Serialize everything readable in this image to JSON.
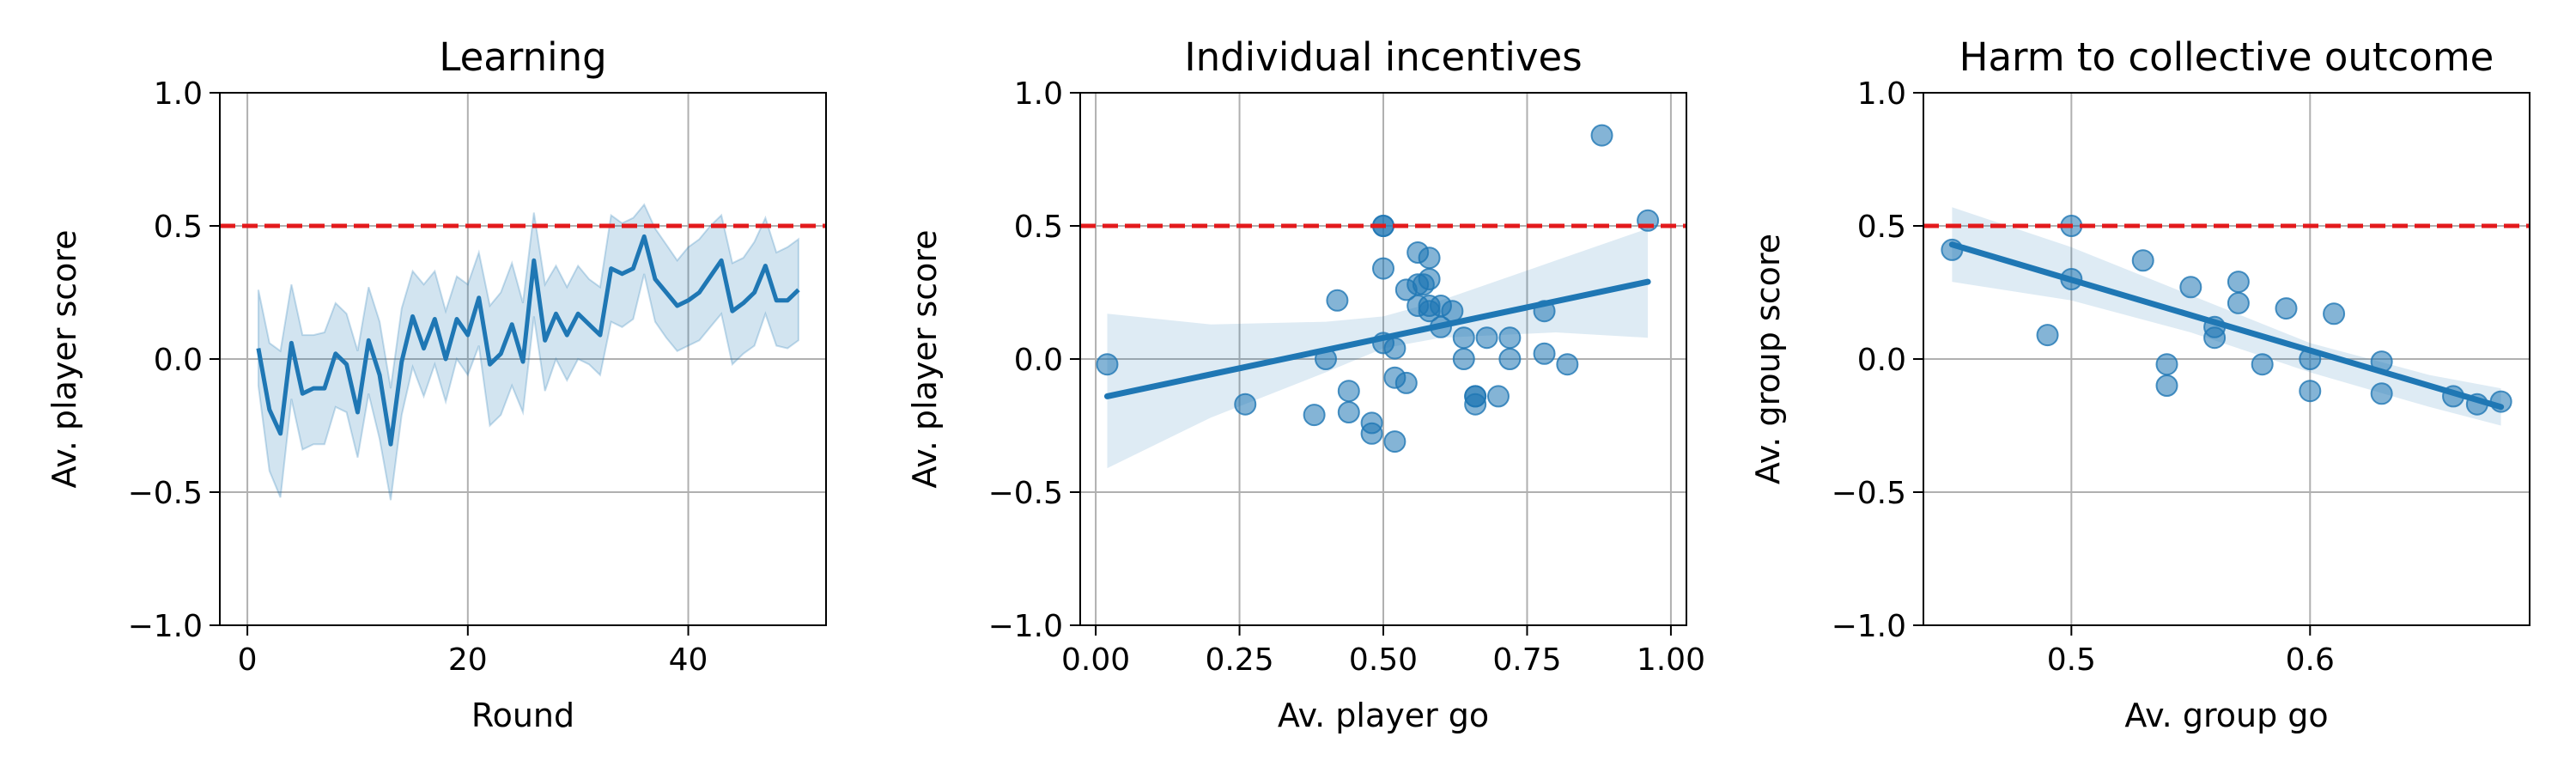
{
  "colors": {
    "series": "#1f77b4",
    "reference": "#e31a1c",
    "grid": "#b0b0b0",
    "band": "#1f77b4"
  },
  "chart_data": [
    {
      "type": "line",
      "title": "Learning",
      "xlabel": "Round",
      "ylabel": "Av. player score",
      "xlim": [
        -2.5,
        52.5
      ],
      "ylim": [
        -1.0,
        1.0
      ],
      "xticks": [
        0,
        20,
        40
      ],
      "xtick_labels": [
        "0",
        "20",
        "40"
      ],
      "yticks": [
        -1.0,
        -0.5,
        0.0,
        0.5,
        1.0
      ],
      "ytick_labels": [
        "−1.0",
        "−0.5",
        "0.0",
        "0.5",
        "1.0"
      ],
      "grid": true,
      "reference_line": 0.5,
      "series": [
        {
          "x": [
            1,
            2,
            3,
            4,
            5,
            6,
            7,
            8,
            9,
            10,
            11,
            12,
            13,
            14,
            15,
            16,
            17,
            18,
            19,
            20,
            21,
            22,
            23,
            24,
            25,
            26,
            27,
            28,
            29,
            30,
            31,
            32,
            33,
            34,
            35,
            36,
            37,
            38,
            39,
            40,
            41,
            42,
            43,
            44,
            45,
            46,
            47,
            48,
            49,
            50
          ],
          "y": [
            0.04,
            -0.19,
            -0.28,
            0.06,
            -0.13,
            -0.11,
            -0.11,
            0.02,
            -0.02,
            -0.2,
            0.07,
            -0.06,
            -0.32,
            -0.01,
            0.16,
            0.04,
            0.15,
            0.0,
            0.15,
            0.09,
            0.23,
            -0.02,
            0.02,
            0.13,
            -0.01,
            0.37,
            0.07,
            0.17,
            0.09,
            0.17,
            0.13,
            0.09,
            0.34,
            0.32,
            0.34,
            0.46,
            0.3,
            0.25,
            0.2,
            0.22,
            0.25,
            0.31,
            0.37,
            0.18,
            0.21,
            0.25,
            0.35,
            0.22,
            0.22,
            0.26
          ],
          "lower": [
            -0.1,
            -0.42,
            -0.52,
            -0.15,
            -0.34,
            -0.32,
            -0.32,
            -0.18,
            -0.2,
            -0.37,
            -0.13,
            -0.3,
            -0.53,
            -0.21,
            -0.03,
            -0.14,
            -0.02,
            -0.16,
            0.0,
            -0.06,
            0.05,
            -0.25,
            -0.21,
            -0.1,
            -0.2,
            0.16,
            -0.12,
            0.0,
            -0.08,
            0.0,
            -0.02,
            -0.06,
            0.14,
            0.12,
            0.15,
            0.32,
            0.14,
            0.08,
            0.03,
            0.05,
            0.07,
            0.12,
            0.17,
            -0.02,
            0.02,
            0.05,
            0.17,
            0.05,
            0.04,
            0.07
          ],
          "upper": [
            0.26,
            0.06,
            0.03,
            0.28,
            0.09,
            0.09,
            0.1,
            0.21,
            0.17,
            0.03,
            0.27,
            0.14,
            -0.11,
            0.19,
            0.33,
            0.28,
            0.33,
            0.18,
            0.31,
            0.28,
            0.4,
            0.2,
            0.25,
            0.36,
            0.21,
            0.55,
            0.28,
            0.35,
            0.27,
            0.35,
            0.3,
            0.27,
            0.54,
            0.51,
            0.53,
            0.58,
            0.49,
            0.43,
            0.37,
            0.42,
            0.45,
            0.5,
            0.54,
            0.36,
            0.38,
            0.44,
            0.53,
            0.4,
            0.42,
            0.45
          ]
        }
      ]
    },
    {
      "type": "scatter",
      "title": "Individual incentives",
      "xlabel": "Av. player go",
      "ylabel": "Av. player score",
      "xlim": [
        -0.027,
        1.027
      ],
      "ylim": [
        -1.0,
        1.0
      ],
      "xticks": [
        0.0,
        0.25,
        0.5,
        0.75,
        1.0
      ],
      "xtick_labels": [
        "0.00",
        "0.25",
        "0.50",
        "0.75",
        "1.00"
      ],
      "yticks": [
        -1.0,
        -0.5,
        0.0,
        0.5,
        1.0
      ],
      "ytick_labels": [
        "−1.0",
        "−0.5",
        "0.0",
        "0.5",
        "1.0"
      ],
      "grid": true,
      "reference_line": 0.5,
      "points": [
        [
          0.02,
          -0.02
        ],
        [
          0.26,
          -0.17
        ],
        [
          0.38,
          -0.21
        ],
        [
          0.4,
          0.0
        ],
        [
          0.42,
          0.22
        ],
        [
          0.44,
          -0.12
        ],
        [
          0.44,
          -0.2
        ],
        [
          0.48,
          -0.24
        ],
        [
          0.48,
          -0.28
        ],
        [
          0.5,
          0.5
        ],
        [
          0.5,
          0.5
        ],
        [
          0.5,
          0.34
        ],
        [
          0.5,
          0.06
        ],
        [
          0.52,
          0.04
        ],
        [
          0.52,
          -0.07
        ],
        [
          0.52,
          -0.31
        ],
        [
          0.54,
          -0.09
        ],
        [
          0.54,
          0.26
        ],
        [
          0.56,
          0.28
        ],
        [
          0.56,
          0.4
        ],
        [
          0.56,
          0.2
        ],
        [
          0.57,
          0.28
        ],
        [
          0.58,
          0.38
        ],
        [
          0.58,
          0.3
        ],
        [
          0.58,
          0.18
        ],
        [
          0.58,
          0.2
        ],
        [
          0.6,
          0.2
        ],
        [
          0.6,
          0.12
        ],
        [
          0.62,
          0.18
        ],
        [
          0.64,
          0.08
        ],
        [
          0.64,
          0.0
        ],
        [
          0.66,
          -0.14
        ],
        [
          0.66,
          -0.14
        ],
        [
          0.66,
          -0.17
        ],
        [
          0.68,
          0.08
        ],
        [
          0.7,
          -0.14
        ],
        [
          0.72,
          0.08
        ],
        [
          0.72,
          0.0
        ],
        [
          0.78,
          0.18
        ],
        [
          0.78,
          0.02
        ],
        [
          0.82,
          -0.02
        ],
        [
          0.88,
          0.84
        ],
        [
          0.96,
          0.52
        ]
      ],
      "fit": {
        "x": [
          0.02,
          0.96
        ],
        "y": [
          -0.14,
          0.29
        ],
        "band_x": [
          0.02,
          0.2,
          0.4,
          0.5,
          0.6,
          0.8,
          0.96
        ],
        "band_lower": [
          -0.41,
          -0.22,
          -0.05,
          0.04,
          0.08,
          0.1,
          0.08
        ],
        "band_upper": [
          0.17,
          0.13,
          0.14,
          0.16,
          0.22,
          0.37,
          0.49
        ]
      }
    },
    {
      "type": "scatter",
      "title": "Harm to collective outcome",
      "xlabel": "Av. group go",
      "ylabel": "Av. group score",
      "xlim": [
        0.438,
        0.692
      ],
      "ylim": [
        -1.0,
        1.0
      ],
      "xticks": [
        0.5,
        0.6
      ],
      "xtick_labels": [
        "0.5",
        "0.6"
      ],
      "yticks": [
        -1.0,
        -0.5,
        0.0,
        0.5,
        1.0
      ],
      "ytick_labels": [
        "−1.0",
        "−0.5",
        "0.0",
        "0.5",
        "1.0"
      ],
      "grid": true,
      "reference_line": 0.5,
      "points": [
        [
          0.45,
          0.41
        ],
        [
          0.49,
          0.09
        ],
        [
          0.5,
          0.5
        ],
        [
          0.5,
          0.3
        ],
        [
          0.53,
          0.37
        ],
        [
          0.54,
          -0.02
        ],
        [
          0.54,
          -0.1
        ],
        [
          0.55,
          0.27
        ],
        [
          0.56,
          0.12
        ],
        [
          0.56,
          0.08
        ],
        [
          0.57,
          0.29
        ],
        [
          0.57,
          0.21
        ],
        [
          0.58,
          -0.02
        ],
        [
          0.59,
          0.19
        ],
        [
          0.6,
          0.0
        ],
        [
          0.6,
          -0.12
        ],
        [
          0.61,
          0.17
        ],
        [
          0.63,
          -0.01
        ],
        [
          0.63,
          -0.13
        ],
        [
          0.66,
          -0.14
        ],
        [
          0.67,
          -0.17
        ],
        [
          0.68,
          -0.16
        ]
      ],
      "fit": {
        "x": [
          0.45,
          0.68
        ],
        "y": [
          0.43,
          -0.18
        ],
        "band_x": [
          0.45,
          0.5,
          0.55,
          0.6,
          0.65,
          0.68
        ],
        "band_lower": [
          0.29,
          0.22,
          0.1,
          -0.05,
          -0.18,
          -0.25
        ],
        "band_upper": [
          0.57,
          0.42,
          0.24,
          0.06,
          -0.06,
          -0.11
        ]
      }
    }
  ]
}
